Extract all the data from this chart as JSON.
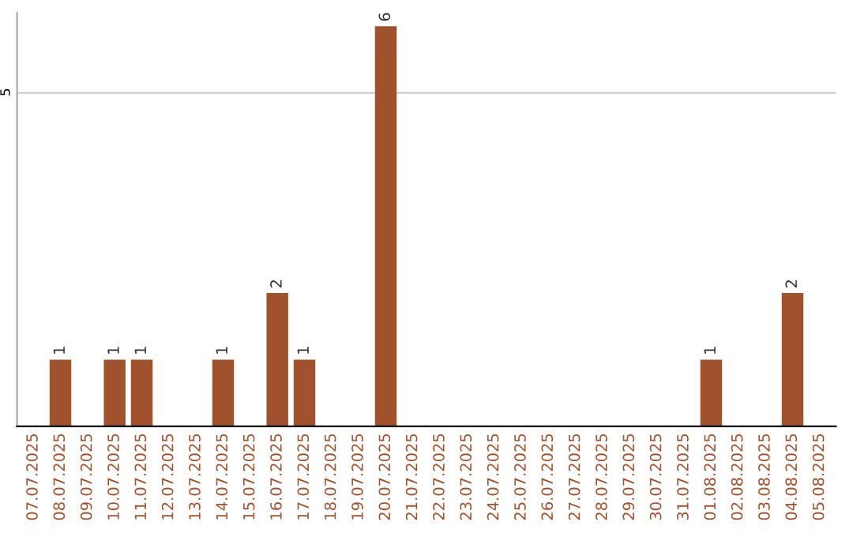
{
  "chart_data": {
    "type": "bar",
    "categories": [
      "07.07.2025",
      "08.07.2025",
      "09.07.2025",
      "10.07.2025",
      "11.07.2025",
      "12.07.2025",
      "13.07.2025",
      "14.07.2025",
      "15.07.2025",
      "16.07.2025",
      "17.07.2025",
      "18.07.2025",
      "19.07.2025",
      "20.07.2025",
      "21.07.2025",
      "22.07.2025",
      "23.07.2025",
      "24.07.2025",
      "25.07.2025",
      "26.07.2025",
      "27.07.2025",
      "28.07.2025",
      "29.07.2025",
      "30.07.2025",
      "31.07.2025",
      "01.08.2025",
      "02.08.2025",
      "03.08.2025",
      "04.08.2025",
      "05.08.2025"
    ],
    "values": [
      0,
      1,
      0,
      1,
      1,
      0,
      0,
      1,
      0,
      2,
      1,
      0,
      0,
      6,
      0,
      0,
      0,
      0,
      0,
      0,
      0,
      0,
      0,
      0,
      0,
      1,
      0,
      0,
      2,
      0
    ],
    "value_labels": [
      null,
      "1",
      null,
      "1",
      "1",
      null,
      null,
      "1",
      null,
      "2",
      "1",
      null,
      null,
      "6",
      null,
      null,
      null,
      null,
      null,
      null,
      null,
      null,
      null,
      null,
      null,
      "1",
      null,
      null,
      "2",
      null
    ],
    "color": "#a0522d",
    "ylim": [
      0,
      6.2
    ],
    "yticks": [
      5
    ],
    "grid": "y"
  }
}
